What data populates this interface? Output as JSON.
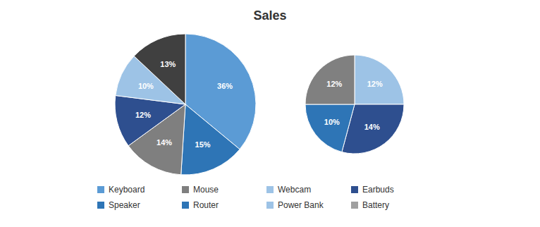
{
  "chart_data": [
    {
      "type": "pie",
      "title": "Sales",
      "values": [
        36,
        15,
        14,
        12,
        10,
        13
      ],
      "value_labels": [
        "36%",
        "15%",
        "14%",
        "12%",
        "10%",
        "13%"
      ],
      "colors": [
        "#5B9BD5",
        "#2E75B6",
        "#7f7f7f",
        "#2E4F8F",
        "#9DC3E6",
        "#404040"
      ],
      "data_labels": true,
      "legend_entries": [
        {
          "label": "Keyboard",
          "color": "#5B9BD5"
        },
        {
          "label": "Mouse",
          "color": "#7f7f7f"
        },
        {
          "label": "Webcam",
          "color": "#9DC3E6"
        },
        {
          "label": "Earbuds",
          "color": "#2E4F8F"
        },
        {
          "label": "Speaker",
          "color": "#2E75B6"
        },
        {
          "label": "Router",
          "color": "#2E75B6"
        },
        {
          "label": "Power Bank",
          "color": "#9DC3E6"
        },
        {
          "label": "Battery",
          "color": "#A0A0A0"
        }
      ]
    },
    {
      "type": "pie",
      "values": [
        12,
        14,
        10,
        12
      ],
      "value_labels": [
        "12%",
        "14%",
        "10%",
        "12%"
      ],
      "colors": [
        "#9DC3E6",
        "#2E4F8F",
        "#2E75B6",
        "#808080"
      ],
      "data_labels": true
    }
  ]
}
